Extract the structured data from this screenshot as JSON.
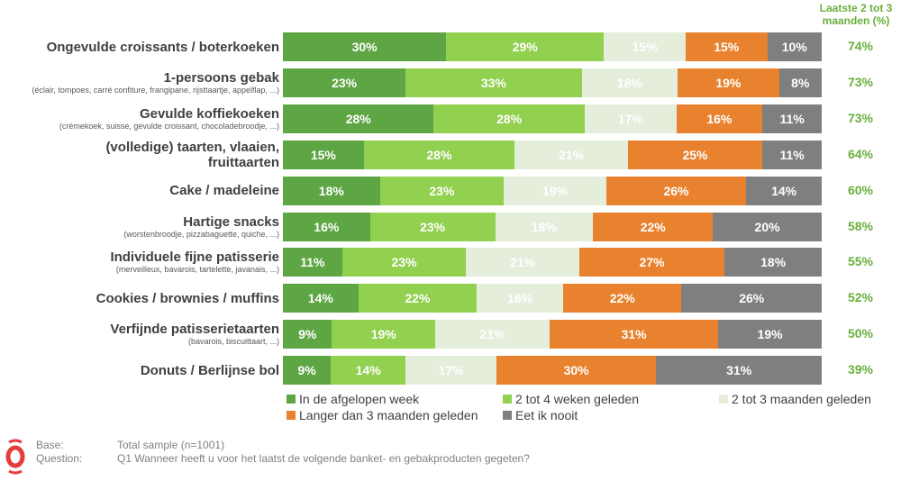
{
  "chart_data": {
    "type": "bar",
    "orientation": "horizontal",
    "stacked": true,
    "right_column_title": "Laatste 2 tot 3 maanden (%)",
    "series": [
      {
        "name": "In de afgelopen week",
        "color": "#5ea544"
      },
      {
        "name": "2 tot 4 weken geleden",
        "color": "#92d050"
      },
      {
        "name": "2 tot 3 maanden geleden",
        "color": "#e5eedb"
      },
      {
        "name": "Langer dan 3 maanden geleden",
        "color": "#e8822f"
      },
      {
        "name": "Eet ik nooit",
        "color": "#7f7f7f"
      }
    ],
    "categories": [
      {
        "label": "Ongevulde croissants / boterkoeken",
        "sub": "",
        "values": [
          30,
          29,
          15,
          15,
          10
        ],
        "recent": "74%"
      },
      {
        "label": "1-persoons gebak",
        "sub": "(éclair, tompoes, carré confiture, frangipane, rijsttaartje, appelflap, ...)",
        "values": [
          23,
          33,
          18,
          19,
          8
        ],
        "recent": "73%"
      },
      {
        "label": "Gevulde koffiekoeken",
        "sub": "(crèmekoek, suisse, gevulde croissant, chocoladebroodje, ...)",
        "values": [
          28,
          28,
          17,
          16,
          11
        ],
        "recent": "73%"
      },
      {
        "label": "(volledige) taarten, vlaaien, fruittaarten",
        "sub": "",
        "values": [
          15,
          28,
          21,
          25,
          11
        ],
        "recent": "64%"
      },
      {
        "label": "Cake / madeleine",
        "sub": "",
        "values": [
          18,
          23,
          19,
          26,
          14
        ],
        "recent": "60%"
      },
      {
        "label": "Hartige snacks",
        "sub": "(worstenbroodje, pizzabaguette, quiche, ...)",
        "values": [
          16,
          23,
          18,
          22,
          20
        ],
        "recent": "58%"
      },
      {
        "label": "Individuele fijne patisserie",
        "sub": "(merveilleux, bavarois, tartelette, javanais, ...)",
        "values": [
          11,
          23,
          21,
          27,
          18
        ],
        "recent": "55%"
      },
      {
        "label": "Cookies / brownies / muffins",
        "sub": "",
        "values": [
          14,
          22,
          16,
          22,
          26
        ],
        "recent": "52%"
      },
      {
        "label": "Verfijnde patisserietaarten",
        "sub": "(bavarois, biscuittaart, ...)",
        "values": [
          9,
          19,
          21,
          31,
          19
        ],
        "recent": "50%"
      },
      {
        "label": "Donuts / Berlijnse bol",
        "sub": "",
        "values": [
          9,
          14,
          17,
          30,
          31
        ],
        "recent": "39%"
      }
    ]
  },
  "footer": {
    "base_label": "Base:",
    "base_value": "Total sample (n=1001)",
    "question_label": "Question:",
    "question_value": "Q1 Wanneer heeft u voor het laatst de volgende banket- en gebakproducten gegeten?"
  }
}
